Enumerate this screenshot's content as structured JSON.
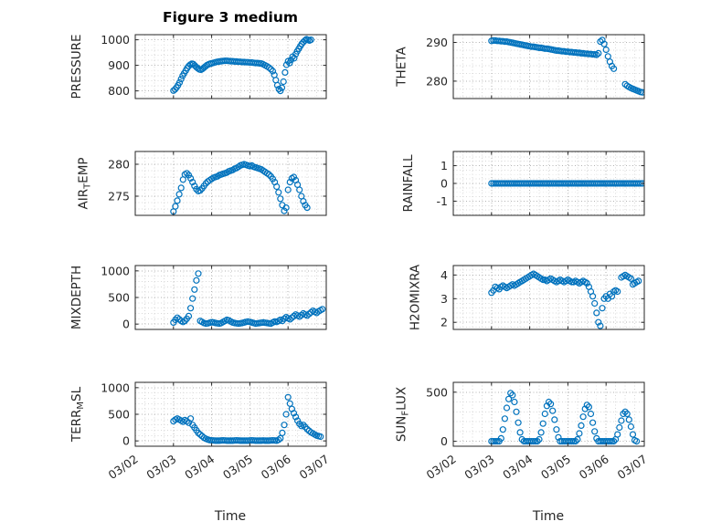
{
  "chart_data": {
    "type": "scatter",
    "title": "Figure 3 medium",
    "xlabel": "Time",
    "marker": "o",
    "colors": {
      "marker": "#0072BD",
      "axis": "#262626",
      "grid": "#b2b2b2",
      "minor_grid": "#d8d8d8"
    },
    "grid": true,
    "minor_grid": true,
    "xlim": [
      2,
      7
    ],
    "x_ticks": [
      2,
      3,
      4,
      5,
      6,
      7
    ],
    "x_tick_labels": [
      "03/02",
      "03/03",
      "03/04",
      "03/05",
      "03/06",
      "03/07"
    ],
    "x_minor_step": 0.25,
    "subplots": [
      {
        "name": "PRESSURE",
        "ylabel": "PRESSURE",
        "label_parts": [
          {
            "text": "PRESSURE",
            "sub": false
          }
        ],
        "row": 0,
        "col": 0,
        "ylim": [
          770,
          1020
        ],
        "yticks": [
          800,
          900,
          1000
        ],
        "y_minor_step": 20,
        "x": [
          3.0,
          3.04,
          3.08,
          3.12,
          3.16,
          3.2,
          3.24,
          3.28,
          3.32,
          3.36,
          3.4,
          3.44,
          3.48,
          3.52,
          3.56,
          3.6,
          3.64,
          3.68,
          3.72,
          3.76,
          3.8,
          3.84,
          3.88,
          3.92,
          3.96,
          4.0,
          4.05,
          4.1,
          4.15,
          4.2,
          4.25,
          4.3,
          4.35,
          4.4,
          4.45,
          4.5,
          4.55,
          4.6,
          4.65,
          4.7,
          4.75,
          4.8,
          4.85,
          4.9,
          4.95,
          5.0,
          5.05,
          5.1,
          5.15,
          5.2,
          5.25,
          5.3,
          5.35,
          5.4,
          5.45,
          5.5,
          5.55,
          5.6,
          5.64,
          5.68,
          5.72,
          5.76,
          5.8,
          5.84,
          5.88,
          5.92,
          5.96,
          6.0,
          6.04,
          6.08,
          6.12,
          6.16,
          6.2,
          6.24,
          6.28,
          6.32,
          6.36,
          6.4,
          6.44,
          6.48,
          6.52,
          6.56,
          6.6
        ],
        "y": [
          801,
          806,
          813,
          822,
          833,
          846,
          859,
          869,
          879,
          889,
          897,
          903,
          906,
          905,
          899,
          893,
          888,
          884,
          883,
          886,
          891,
          896,
          901,
          904,
          906,
          908,
          910,
          912,
          914,
          915,
          916,
          917,
          918,
          918,
          917,
          916,
          916,
          915,
          915,
          914,
          914,
          913,
          913,
          912,
          912,
          911,
          911,
          910,
          909,
          909,
          908,
          907,
          904,
          900,
          896,
          891,
          885,
          877,
          862,
          842,
          822,
          807,
          800,
          812,
          836,
          872,
          902,
          916,
          909,
          921,
          934,
          928,
          944,
          955,
          965,
          975,
          984,
          991,
          997,
          1002,
          1000,
          997,
          1000
        ]
      },
      {
        "name": "THETA",
        "ylabel": "THETA",
        "label_parts": [
          {
            "text": "THETA",
            "sub": false
          }
        ],
        "row": 0,
        "col": 1,
        "ylim": [
          275.5,
          292
        ],
        "yticks": [
          280,
          290
        ],
        "y_minor_step": 2,
        "x": [
          3.0,
          3.05,
          3.1,
          3.15,
          3.2,
          3.25,
          3.3,
          3.35,
          3.4,
          3.45,
          3.5,
          3.55,
          3.6,
          3.65,
          3.7,
          3.75,
          3.8,
          3.85,
          3.9,
          3.95,
          4.0,
          4.05,
          4.1,
          4.15,
          4.2,
          4.25,
          4.3,
          4.35,
          4.4,
          4.45,
          4.5,
          4.55,
          4.6,
          4.65,
          4.7,
          4.75,
          4.8,
          4.85,
          4.9,
          4.95,
          5.0,
          5.05,
          5.1,
          5.15,
          5.2,
          5.25,
          5.3,
          5.35,
          5.4,
          5.45,
          5.5,
          5.55,
          5.6,
          5.65,
          5.7,
          5.75,
          5.8,
          5.85,
          5.9,
          5.95,
          6.0,
          6.05,
          6.1,
          6.15,
          6.2,
          6.5,
          6.55,
          6.6,
          6.65,
          6.7,
          6.75,
          6.8,
          6.85,
          6.9,
          6.95
        ],
        "y": [
          290.4,
          290.5,
          290.5,
          290.4,
          290.4,
          290.3,
          290.3,
          290.2,
          290.2,
          290.1,
          290.0,
          289.9,
          289.8,
          289.7,
          289.6,
          289.5,
          289.4,
          289.3,
          289.2,
          289.1,
          289.0,
          288.9,
          288.9,
          288.8,
          288.7,
          288.6,
          288.6,
          288.5,
          288.4,
          288.4,
          288.3,
          288.2,
          288.1,
          288.0,
          287.9,
          287.9,
          287.8,
          287.7,
          287.7,
          287.6,
          287.6,
          287.5,
          287.5,
          287.4,
          287.4,
          287.3,
          287.3,
          287.2,
          287.2,
          287.1,
          287.1,
          287.0,
          287.0,
          286.9,
          286.9,
          286.8,
          287.2,
          290.2,
          290.6,
          289.6,
          288.1,
          286.4,
          285.0,
          283.9,
          283.2,
          279.2,
          278.8,
          278.5,
          278.2,
          278.0,
          277.8,
          277.6,
          277.4,
          277.2,
          277.1
        ]
      },
      {
        "name": "AIR_TEMP",
        "ylabel": "AIR_TEMP",
        "label_parts": [
          {
            "text": "AIR",
            "sub": false
          },
          {
            "text": "T",
            "sub": true
          },
          {
            "text": "EMP",
            "sub": false
          }
        ],
        "row": 1,
        "col": 0,
        "ylim": [
          272,
          282
        ],
        "yticks": [
          275,
          280
        ],
        "y_minor_step": 1,
        "x_range": [
          3.0,
          6.5,
          0.05
        ],
        "y": [
          272.6,
          273.4,
          274.3,
          275.3,
          276.3,
          277.6,
          278.4,
          278.6,
          278.3,
          277.8,
          277.2,
          276.6,
          276.1,
          275.8,
          275.9,
          276.2,
          276.6,
          277.0,
          277.3,
          277.5,
          277.7,
          277.9,
          278.0,
          278.1,
          278.3,
          278.4,
          278.5,
          278.6,
          278.7,
          278.9,
          279.0,
          279.1,
          279.3,
          279.4,
          279.6,
          279.8,
          279.9,
          280.0,
          279.9,
          279.8,
          279.7,
          279.8,
          279.6,
          279.5,
          279.4,
          279.3,
          279.2,
          279.0,
          278.8,
          278.6,
          278.4,
          278.1,
          277.7,
          277.2,
          276.5,
          275.6,
          274.6,
          273.6,
          272.7,
          273.2,
          276.0,
          277.2,
          277.8,
          278.0,
          277.5,
          276.8,
          276.0,
          275.0,
          274.2,
          273.6,
          273.2
        ]
      },
      {
        "name": "RAINFALL",
        "ylabel": "RAINFALL",
        "label_parts": [
          {
            "text": "RAINFALL",
            "sub": false
          }
        ],
        "row": 1,
        "col": 1,
        "ylim": [
          -1.8,
          1.8
        ],
        "yticks": [
          -1,
          0,
          1
        ],
        "y_minor_step": 0.25,
        "x_range": [
          3.0,
          6.95,
          0.05
        ],
        "y_const": 0
      },
      {
        "name": "MIXDEPTH",
        "ylabel": "MIXDEPTH",
        "label_parts": [
          {
            "text": "MIXDEPTH",
            "sub": false
          }
        ],
        "row": 2,
        "col": 0,
        "ylim": [
          -100,
          1100
        ],
        "yticks": [
          0,
          500,
          1000
        ],
        "y_minor_step": 100,
        "x_range": [
          3.0,
          6.9,
          0.05
        ],
        "y": [
          30,
          80,
          120,
          90,
          60,
          40,
          60,
          100,
          150,
          300,
          480,
          650,
          820,
          950,
          60,
          40,
          20,
          10,
          15,
          25,
          35,
          30,
          20,
          15,
          10,
          20,
          40,
          60,
          80,
          70,
          50,
          30,
          20,
          15,
          10,
          15,
          20,
          30,
          40,
          50,
          40,
          30,
          20,
          10,
          15,
          20,
          25,
          30,
          25,
          20,
          15,
          10,
          30,
          50,
          40,
          60,
          80,
          60,
          100,
          130,
          110,
          90,
          120,
          150,
          180,
          160,
          140,
          170,
          200,
          180,
          160,
          190,
          220,
          250,
          230,
          210,
          240,
          260,
          280
        ]
      },
      {
        "name": "H2OMIXRA",
        "ylabel": "H2OMIXRA",
        "label_parts": [
          {
            "text": "H2OMIXRA",
            "sub": false
          }
        ],
        "row": 2,
        "col": 1,
        "ylim": [
          1.7,
          4.4
        ],
        "yticks": [
          2,
          3,
          4
        ],
        "y_minor_step": 0.2,
        "x": [
          3.0,
          3.05,
          3.1,
          3.15,
          3.2,
          3.25,
          3.3,
          3.35,
          3.4,
          3.45,
          3.5,
          3.55,
          3.6,
          3.65,
          3.7,
          3.75,
          3.8,
          3.85,
          3.9,
          3.95,
          4.0,
          4.05,
          4.1,
          4.15,
          4.2,
          4.25,
          4.3,
          4.35,
          4.4,
          4.45,
          4.5,
          4.55,
          4.6,
          4.65,
          4.7,
          4.75,
          4.8,
          4.85,
          4.9,
          4.95,
          5.0,
          5.05,
          5.1,
          5.15,
          5.2,
          5.25,
          5.3,
          5.35,
          5.4,
          5.45,
          5.5,
          5.55,
          5.6,
          5.65,
          5.7,
          5.75,
          5.8,
          5.85,
          5.9,
          5.95,
          6.0,
          6.05,
          6.1,
          6.15,
          6.2,
          6.25,
          6.3,
          6.4,
          6.45,
          6.5,
          6.55,
          6.6,
          6.65,
          6.7,
          6.75,
          6.8,
          6.85
        ],
        "y": [
          3.25,
          3.35,
          3.5,
          3.45,
          3.4,
          3.5,
          3.55,
          3.5,
          3.45,
          3.5,
          3.55,
          3.6,
          3.55,
          3.6,
          3.65,
          3.7,
          3.75,
          3.8,
          3.85,
          3.9,
          3.95,
          4.0,
          4.05,
          4.0,
          3.95,
          3.9,
          3.85,
          3.8,
          3.8,
          3.75,
          3.8,
          3.85,
          3.8,
          3.75,
          3.7,
          3.75,
          3.8,
          3.75,
          3.7,
          3.75,
          3.8,
          3.75,
          3.7,
          3.7,
          3.75,
          3.7,
          3.65,
          3.7,
          3.75,
          3.7,
          3.65,
          3.5,
          3.3,
          3.1,
          2.8,
          2.4,
          2.0,
          1.85,
          2.6,
          3.0,
          3.1,
          3.0,
          3.2,
          3.1,
          3.3,
          3.35,
          3.3,
          3.9,
          3.95,
          4.0,
          3.95,
          3.9,
          3.85,
          3.6,
          3.65,
          3.7,
          3.75
        ]
      },
      {
        "name": "TERR_MSL",
        "ylabel": "TERR_MSL",
        "label_parts": [
          {
            "text": "TERR",
            "sub": false
          },
          {
            "text": "M",
            "sub": true
          },
          {
            "text": "SL",
            "sub": false
          }
        ],
        "row": 3,
        "col": 0,
        "ylim": [
          -100,
          1100
        ],
        "yticks": [
          0,
          500,
          1000
        ],
        "y_minor_step": 100,
        "x_range": [
          3.0,
          6.85,
          0.05
        ],
        "y": [
          370,
          400,
          420,
          400,
          380,
          360,
          390,
          370,
          340,
          420,
          300,
          250,
          200,
          150,
          120,
          90,
          60,
          40,
          25,
          15,
          10,
          8,
          5,
          5,
          5,
          8,
          10,
          8,
          5,
          5,
          5,
          5,
          8,
          10,
          8,
          5,
          5,
          5,
          5,
          5,
          8,
          10,
          8,
          5,
          5,
          5,
          5,
          8,
          5,
          5,
          5,
          8,
          10,
          8,
          5,
          20,
          50,
          150,
          300,
          500,
          820,
          700,
          600,
          520,
          450,
          380,
          320,
          280,
          300,
          260,
          220,
          190,
          160,
          140,
          120,
          100,
          90,
          80
        ]
      },
      {
        "name": "SUN_FLUX",
        "ylabel": "SUN_FLUX",
        "label_parts": [
          {
            "text": "SUN",
            "sub": false
          },
          {
            "text": "F",
            "sub": true
          },
          {
            "text": "LUX",
            "sub": false
          }
        ],
        "row": 3,
        "col": 1,
        "ylim": [
          -50,
          600
        ],
        "yticks": [
          0,
          500
        ],
        "y_minor_step": 100,
        "x_range": [
          3.0,
          6.8,
          0.05
        ],
        "y": [
          0,
          0,
          0,
          0,
          0,
          30,
          120,
          230,
          340,
          430,
          490,
          470,
          400,
          300,
          190,
          90,
          20,
          0,
          0,
          0,
          0,
          0,
          0,
          0,
          0,
          20,
          90,
          180,
          280,
          360,
          400,
          380,
          310,
          220,
          120,
          40,
          0,
          0,
          0,
          0,
          0,
          0,
          0,
          0,
          0,
          20,
          80,
          160,
          250,
          330,
          370,
          350,
          280,
          190,
          100,
          30,
          0,
          0,
          0,
          0,
          0,
          0,
          0,
          0,
          0,
          20,
          70,
          140,
          210,
          280,
          300,
          280,
          220,
          150,
          70,
          10,
          0
        ]
      }
    ]
  }
}
